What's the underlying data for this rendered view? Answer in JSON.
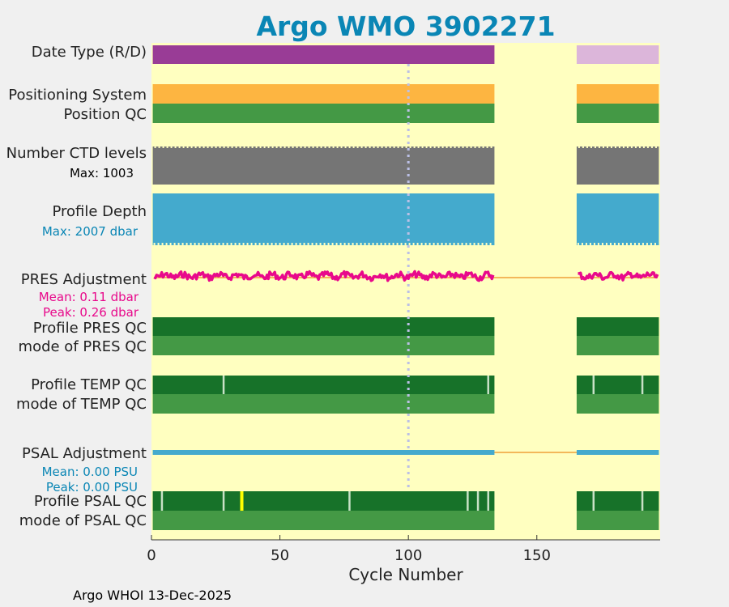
{
  "chart_data": {
    "type": "timeline",
    "title": "Argo WMO 3902271",
    "xlabel": "Cycle Number",
    "xlim": [
      0,
      198
    ],
    "xticks": [
      0,
      50,
      100,
      150
    ],
    "marker_cycle": 100,
    "data_ranges": [
      [
        1,
        133
      ],
      [
        166,
        197
      ]
    ],
    "footer": "Argo WHOI 13-Dec-2025",
    "colors": {
      "title": "#0a86b5",
      "background": "#ffffc0",
      "date_type_r": "#993c96",
      "date_type_d": "#dcb6da",
      "positioning": "#fdb541",
      "qc_mode": "#449945",
      "qc_profile": "#177229",
      "ctd": "#757575",
      "depth": "#44aacd",
      "pres_adj": "#e8098b",
      "ref_line": "#f3b85a",
      "psal_adj": "#44aacd",
      "marker": "#bcc0e6",
      "flag_light": "#c8e1c6",
      "flag_yellow": "#ffff00"
    },
    "rows": {
      "date_type": {
        "label": "Date Type (R/D)",
        "segments": [
          {
            "from": 1,
            "to": 133,
            "value": "R"
          },
          {
            "from": 166,
            "to": 197,
            "value": "D"
          }
        ]
      },
      "positioning": {
        "label": "Positioning System"
      },
      "position_qc": {
        "label": "Position QC"
      },
      "ctd_levels": {
        "label": "Number CTD levels",
        "max_text": "Max: 1003",
        "max": 1003
      },
      "profile_depth": {
        "label": "Profile Depth",
        "max_text": "Max: 2007 dbar",
        "max": 2007
      },
      "pres_adjustment": {
        "label": "PRES Adjustment",
        "mean_text": "Mean: 0.11 dbar",
        "peak_text": "Peak: 0.26 dbar",
        "mean": 0.11,
        "peak": 0.26
      },
      "profile_pres_qc": {
        "label": "Profile PRES QC",
        "flags": []
      },
      "mode_pres_qc": {
        "label": "mode of PRES QC"
      },
      "profile_temp_qc": {
        "label": "Profile TEMP QC",
        "flags": [
          28,
          131,
          172,
          191
        ]
      },
      "mode_temp_qc": {
        "label": "mode of TEMP QC"
      },
      "psal_adjustment": {
        "label": "PSAL Adjustment",
        "mean_text": "Mean: 0.00 PSU",
        "peak_text": "Peak: 0.00 PSU",
        "mean": 0.0,
        "peak": 0.0
      },
      "profile_psal_qc": {
        "label": "Profile PSAL QC",
        "flags": [
          4,
          28,
          77,
          123,
          127,
          131,
          172,
          191
        ],
        "bad_flags": [
          35
        ]
      },
      "mode_psal_qc": {
        "label": "mode of PSAL QC"
      }
    }
  }
}
